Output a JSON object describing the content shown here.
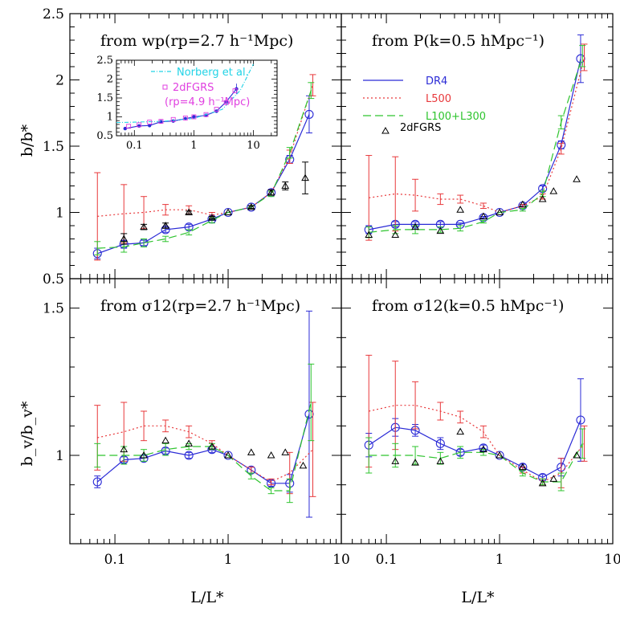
{
  "figure": {
    "x_axis_label": "L/L*",
    "top_y_label": "b/b*",
    "bottom_y_label": "b_v/b_v*"
  },
  "colors": {
    "dr4": "#2b2bd6",
    "l500": "#e8383b",
    "l100_l300": "#2ec42e",
    "twodf": "#000000",
    "norberg": "#22d3e6",
    "twodf_inset": "#e040e0"
  },
  "legend": {
    "dr4": "DR4",
    "l500": "L500",
    "l100_l300": "L100+L300",
    "twodf": "2dFGRS"
  },
  "inset_legend": {
    "norberg": "Norberg et al.",
    "twodf": "2dFGRS",
    "twodf_sub": "(rp=4.9 h⁻¹Mpc)"
  },
  "chart_data": [
    {
      "type": "line",
      "panel": "top-left",
      "title": "from wp(rp=2.7 h⁻¹Mpc)",
      "xscale": "log",
      "xlim": [
        0.04,
        10
      ],
      "ylim": [
        0.5,
        2.5
      ],
      "x_ticks": [
        "0.1",
        "1",
        "10"
      ],
      "y_ticks": [
        "0.5",
        "1",
        "1.5",
        "2",
        "2.5"
      ],
      "series": [
        {
          "name": "DR4",
          "x": [
            0.07,
            0.12,
            0.18,
            0.28,
            0.45,
            0.72,
            1.0,
            1.6,
            2.4,
            3.5,
            5.2
          ],
          "y": [
            0.69,
            0.76,
            0.77,
            0.87,
            0.89,
            0.95,
            1.0,
            1.04,
            1.15,
            1.4,
            1.74
          ],
          "err": [
            0.04,
            0.03,
            0.02,
            0.02,
            0.02,
            0.01,
            0.0,
            0.01,
            0.02,
            0.03,
            0.14
          ]
        },
        {
          "name": "L500",
          "x": [
            0.07,
            0.12,
            0.18,
            0.28,
            0.45,
            0.72,
            1.0,
            1.6,
            2.4,
            3.5,
            5.6
          ],
          "y": [
            0.97,
            0.99,
            1.0,
            1.02,
            1.02,
            0.98,
            1.0,
            1.04,
            1.15,
            1.42,
            1.96
          ],
          "err": [
            0.33,
            0.22,
            0.12,
            0.04,
            0.03,
            0.02,
            0.0,
            0.01,
            0.02,
            0.05,
            0.08
          ]
        },
        {
          "name": "L100+L300",
          "x": [
            0.07,
            0.12,
            0.18,
            0.28,
            0.45,
            0.72,
            1.0,
            1.6,
            2.4,
            3.5,
            5.4
          ],
          "y": [
            0.73,
            0.74,
            0.77,
            0.8,
            0.85,
            0.94,
            1.0,
            1.04,
            1.14,
            1.45,
            1.92
          ],
          "err": [
            0.05,
            0.04,
            0.03,
            0.02,
            0.02,
            0.02,
            0.0,
            0.01,
            0.02,
            0.04,
            0.06
          ]
        },
        {
          "name": "2dFGRS",
          "x": [
            0.12,
            0.18,
            0.28,
            0.45,
            0.72,
            1.0,
            1.6,
            2.4,
            3.2,
            4.8
          ],
          "y": [
            0.8,
            0.89,
            0.9,
            1.0,
            0.96,
            1.0,
            1.04,
            1.15,
            1.2,
            1.26
          ],
          "err": [
            0.04,
            0.02,
            0.02,
            0.01,
            0.01,
            0.0,
            0.01,
            0.02,
            0.03,
            0.12
          ]
        }
      ]
    },
    {
      "type": "line",
      "panel": "top-right",
      "title": "from P(k=0.5 hMpc⁻¹)",
      "xscale": "log",
      "xlim": [
        0.04,
        10
      ],
      "ylim": [
        0.5,
        2.5
      ],
      "series": [
        {
          "name": "DR4",
          "x": [
            0.07,
            0.12,
            0.18,
            0.3,
            0.45,
            0.72,
            1.0,
            1.6,
            2.4,
            3.5,
            5.2
          ],
          "y": [
            0.87,
            0.91,
            0.91,
            0.91,
            0.91,
            0.96,
            1.0,
            1.05,
            1.18,
            1.51,
            2.16
          ],
          "err": [
            0.03,
            0.02,
            0.02,
            0.02,
            0.01,
            0.01,
            0.0,
            0.01,
            0.02,
            0.03,
            0.18
          ]
        },
        {
          "name": "L500",
          "x": [
            0.07,
            0.12,
            0.18,
            0.3,
            0.45,
            0.72,
            1.0,
            1.6,
            2.4,
            3.5,
            5.6
          ],
          "y": [
            1.11,
            1.14,
            1.13,
            1.1,
            1.1,
            1.05,
            1.0,
            1.05,
            1.12,
            1.48,
            2.17
          ],
          "err": [
            0.32,
            0.28,
            0.12,
            0.04,
            0.03,
            0.02,
            0.0,
            0.01,
            0.02,
            0.04,
            0.1
          ]
        },
        {
          "name": "L100+L300",
          "x": [
            0.07,
            0.12,
            0.18,
            0.3,
            0.45,
            0.72,
            1.0,
            1.6,
            2.4,
            3.5,
            5.4
          ],
          "y": [
            0.85,
            0.87,
            0.87,
            0.87,
            0.88,
            0.93,
            1.0,
            1.02,
            1.14,
            1.68,
            2.18
          ],
          "err": [
            0.04,
            0.03,
            0.03,
            0.02,
            0.02,
            0.01,
            0.0,
            0.01,
            0.02,
            0.05,
            0.08
          ]
        },
        {
          "name": "2dFGRS",
          "x": [
            0.07,
            0.12,
            0.18,
            0.3,
            0.45,
            0.72,
            1.0,
            1.6,
            2.4,
            3.0,
            4.8
          ],
          "y": [
            0.83,
            0.83,
            0.89,
            0.86,
            1.02,
            0.97,
            1.0,
            1.06,
            1.1,
            1.16,
            1.25
          ],
          "err": [
            0.0,
            0.0,
            0.0,
            0.0,
            0.0,
            0.0,
            0.0,
            0.0,
            0.0,
            0.0,
            0.0
          ]
        }
      ]
    },
    {
      "type": "line",
      "panel": "bottom-left",
      "title": "from σ12(rp=2.7 h⁻¹Mpc)",
      "xscale": "log",
      "xlim": [
        0.04,
        10
      ],
      "ylim": [
        0.7,
        1.6
      ],
      "y_ticks": [
        "1",
        "1.5"
      ],
      "series": [
        {
          "name": "DR4",
          "x": [
            0.07,
            0.12,
            0.18,
            0.28,
            0.45,
            0.72,
            1.0,
            1.6,
            2.4,
            3.5,
            5.2
          ],
          "y": [
            0.91,
            0.985,
            0.99,
            1.015,
            1.0,
            1.02,
            1.0,
            0.95,
            0.905,
            0.905,
            1.14
          ],
          "err": [
            0.02,
            0.01,
            0.01,
            0.01,
            0.01,
            0.01,
            0.0,
            0.01,
            0.01,
            0.03,
            0.35
          ]
        },
        {
          "name": "L500",
          "x": [
            0.07,
            0.12,
            0.18,
            0.28,
            0.45,
            0.72,
            1.0,
            1.6,
            2.4,
            3.5,
            5.6
          ],
          "y": [
            1.06,
            1.08,
            1.1,
            1.1,
            1.08,
            1.04,
            1.0,
            0.95,
            0.91,
            0.94,
            1.02
          ],
          "err": [
            0.11,
            0.1,
            0.05,
            0.02,
            0.02,
            0.01,
            0.0,
            0.01,
            0.01,
            0.07,
            0.16
          ]
        },
        {
          "name": "L100+L300",
          "x": [
            0.07,
            0.12,
            0.18,
            0.28,
            0.45,
            0.72,
            1.0,
            1.6,
            2.4,
            3.5,
            5.4
          ],
          "y": [
            1.0,
            1.0,
            1.0,
            1.02,
            1.03,
            1.03,
            1.0,
            0.93,
            0.88,
            0.88,
            1.18
          ],
          "err": [
            0.04,
            0.03,
            0.02,
            0.02,
            0.01,
            0.01,
            0.0,
            0.01,
            0.01,
            0.04,
            0.13
          ]
        },
        {
          "name": "2dFGRS",
          "x": [
            0.12,
            0.18,
            0.28,
            0.45,
            0.72,
            1.0,
            1.6,
            2.4,
            3.2,
            4.6
          ],
          "y": [
            1.02,
            1.0,
            1.05,
            1.04,
            1.03,
            1.0,
            1.01,
            1.0,
            1.01,
            0.965
          ],
          "err": [
            0.0,
            0.0,
            0.0,
            0.0,
            0.0,
            0.0,
            0.0,
            0.0,
            0.0,
            0.0
          ]
        }
      ]
    },
    {
      "type": "line",
      "panel": "bottom-right",
      "title": "from σ12(k=0.5 hMpc⁻¹)",
      "xscale": "log",
      "xlim": [
        0.04,
        10
      ],
      "ylim": [
        0.7,
        1.6
      ],
      "series": [
        {
          "name": "DR4",
          "x": [
            0.07,
            0.12,
            0.18,
            0.3,
            0.45,
            0.72,
            1.0,
            1.6,
            2.4,
            3.5,
            5.2
          ],
          "y": [
            1.035,
            1.095,
            1.085,
            1.04,
            1.01,
            1.025,
            1.0,
            0.96,
            0.925,
            0.96,
            1.12
          ],
          "err": [
            0.04,
            0.03,
            0.02,
            0.02,
            0.01,
            0.01,
            0.0,
            0.01,
            0.01,
            0.03,
            0.14
          ]
        },
        {
          "name": "L500",
          "x": [
            0.07,
            0.12,
            0.18,
            0.3,
            0.45,
            0.72,
            1.0,
            1.6,
            2.4,
            3.5,
            5.6
          ],
          "y": [
            1.15,
            1.17,
            1.17,
            1.15,
            1.13,
            1.08,
            1.0,
            0.95,
            0.91,
            0.94,
            1.04
          ],
          "err": [
            0.19,
            0.15,
            0.08,
            0.03,
            0.02,
            0.02,
            0.0,
            0.01,
            0.01,
            0.05,
            0.06
          ]
        },
        {
          "name": "L100+L300",
          "x": [
            0.07,
            0.12,
            0.18,
            0.3,
            0.45,
            0.72,
            1.0,
            1.6,
            2.4,
            3.5,
            5.4
          ],
          "y": [
            1.0,
            1.0,
            1.0,
            0.99,
            1.01,
            1.01,
            1.0,
            0.94,
            0.91,
            0.91,
            1.04
          ],
          "err": [
            0.06,
            0.04,
            0.03,
            0.02,
            0.02,
            0.01,
            0.0,
            0.01,
            0.01,
            0.03,
            0.05
          ]
        },
        {
          "name": "2dFGRS",
          "x": [
            0.12,
            0.18,
            0.3,
            0.45,
            0.72,
            1.0,
            1.6,
            2.4,
            3.0,
            4.8
          ],
          "y": [
            0.98,
            0.975,
            0.98,
            1.08,
            1.02,
            1.0,
            0.96,
            0.905,
            0.92,
            1.0
          ],
          "err": [
            0.0,
            0.0,
            0.0,
            0.0,
            0.0,
            0.0,
            0.0,
            0.0,
            0.0,
            0.0
          ]
        }
      ]
    },
    {
      "type": "line",
      "panel": "inset",
      "xscale": "log",
      "xlim": [
        0.05,
        25
      ],
      "ylim": [
        0.5,
        2.5
      ],
      "x_ticks": [
        "0.1",
        "1",
        "10"
      ],
      "y_ticks": [
        "0.5",
        "1",
        "1.5",
        "2",
        "2.5"
      ],
      "series": [
        {
          "name": "DR4",
          "x": [
            0.07,
            0.12,
            0.18,
            0.28,
            0.45,
            0.72,
            1.0,
            1.6,
            2.4,
            3.5,
            5.2
          ],
          "y": [
            0.69,
            0.76,
            0.77,
            0.87,
            0.89,
            0.95,
            1.0,
            1.04,
            1.15,
            1.4,
            1.74
          ],
          "err": [
            0.02,
            0.02,
            0.01,
            0.01,
            0.01,
            0.01,
            0.0,
            0.01,
            0.02,
            0.03,
            0.14
          ]
        },
        {
          "name": "Norberg et al.",
          "x": [
            0.05,
            0.1,
            0.3,
            1.0,
            3.0,
            6.0,
            10.0
          ],
          "y": [
            0.85,
            0.86,
            0.88,
            0.96,
            1.2,
            1.7,
            2.4
          ]
        },
        {
          "name": "2dFGRS",
          "x": [
            0.08,
            0.12,
            0.18,
            0.28,
            0.45,
            0.72,
            1.0,
            1.6,
            2.4,
            3.5,
            4.9
          ],
          "y": [
            0.75,
            0.79,
            0.86,
            0.88,
            0.93,
            0.97,
            1.0,
            1.06,
            1.2,
            1.38,
            1.69
          ]
        }
      ]
    }
  ]
}
